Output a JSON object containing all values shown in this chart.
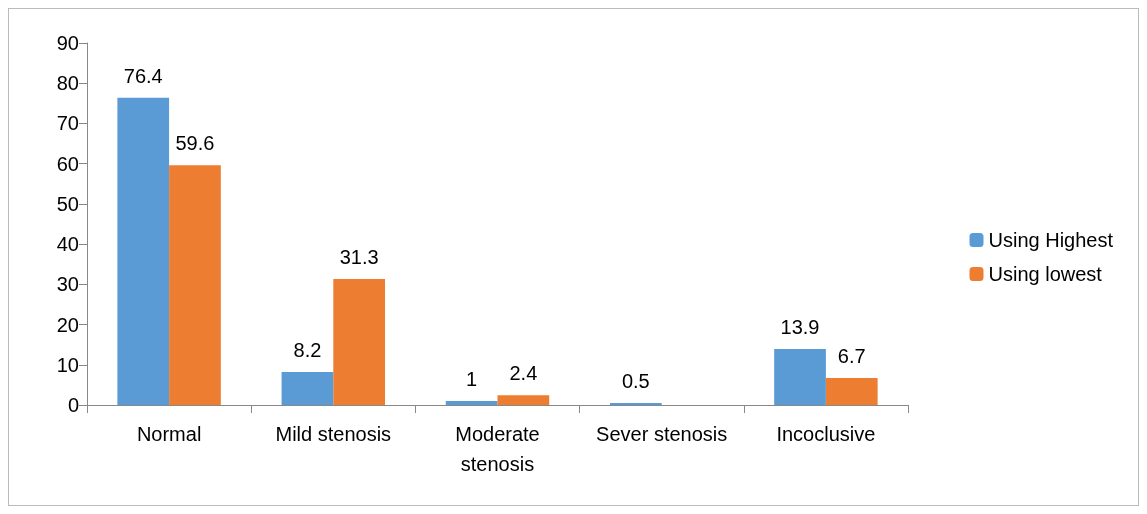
{
  "chart_data": {
    "type": "bar",
    "categories": [
      "Normal",
      "Mild stenosis",
      "Moderate\nstenosis",
      "Sever stenosis",
      "Incoclusive"
    ],
    "series": [
      {
        "name": "Using Highest",
        "color": "#5b9bd5",
        "values": [
          76.4,
          8.2,
          1,
          0.5,
          13.9
        ]
      },
      {
        "name": "Using lowest",
        "color": "#ed7d31",
        "values": [
          59.6,
          31.3,
          2.4,
          null,
          6.7
        ]
      }
    ],
    "ylim": [
      0,
      90
    ],
    "yticks": [
      0,
      10,
      20,
      30,
      40,
      50,
      60,
      70,
      80,
      90
    ],
    "grid": false,
    "legend": "right",
    "data_labels": true
  }
}
